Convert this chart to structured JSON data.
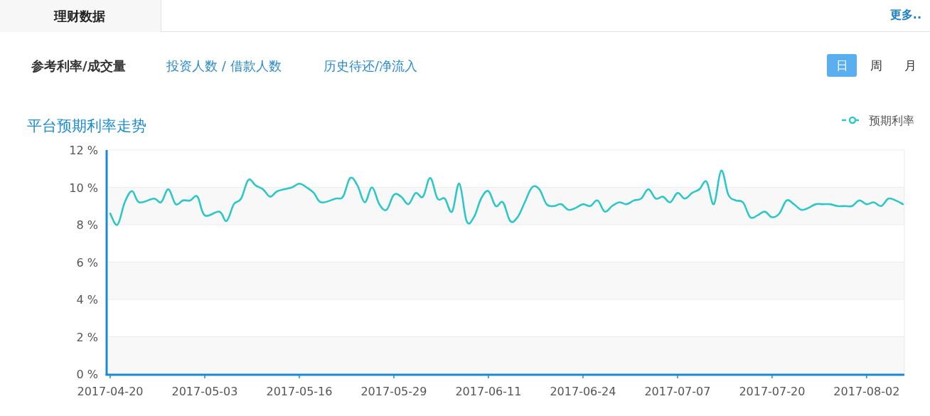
{
  "chart_data": {
    "type": "line",
    "title": "平台预期利率走势",
    "annotations": [
      "理财数据",
      "更多..",
      "参考利率/成交量",
      "投资人数 / 借款人数",
      "历史待还/净流入",
      "日",
      "周",
      "月"
    ],
    "series": [
      {
        "name": "预期利率",
        "color": "#2ec7c9",
        "x": [
          "2017-04-20",
          "2017-04-21",
          "2017-04-22",
          "2017-04-23",
          "2017-04-24",
          "2017-04-26",
          "2017-04-27",
          "2017-04-28",
          "2017-04-29",
          "2017-04-30",
          "2017-05-01",
          "2017-05-02",
          "2017-05-03",
          "2017-05-05",
          "2017-05-06",
          "2017-05-07",
          "2017-05-08",
          "2017-05-09",
          "2017-05-10",
          "2017-05-11",
          "2017-05-12",
          "2017-05-13",
          "2017-05-15",
          "2017-05-16",
          "2017-05-17",
          "2017-05-18",
          "2017-05-19",
          "2017-05-21",
          "2017-05-22",
          "2017-05-23",
          "2017-05-24",
          "2017-05-25",
          "2017-05-26",
          "2017-05-27",
          "2017-05-28",
          "2017-05-29",
          "2017-05-30",
          "2017-05-31",
          "2017-06-01",
          "2017-06-02",
          "2017-06-03",
          "2017-06-04",
          "2017-06-05",
          "2017-06-06",
          "2017-06-07",
          "2017-06-08",
          "2017-06-09",
          "2017-06-10",
          "2017-06-11",
          "2017-06-12",
          "2017-06-13",
          "2017-06-14",
          "2017-06-15",
          "2017-06-16",
          "2017-06-17",
          "2017-06-18",
          "2017-06-19",
          "2017-06-20",
          "2017-06-21",
          "2017-06-22",
          "2017-06-23",
          "2017-06-24",
          "2017-06-25",
          "2017-06-26",
          "2017-06-27",
          "2017-06-28",
          "2017-06-29",
          "2017-06-30",
          "2017-07-01",
          "2017-07-02",
          "2017-07-03",
          "2017-07-04",
          "2017-07-05",
          "2017-07-06",
          "2017-07-07",
          "2017-07-08",
          "2017-07-09",
          "2017-07-10",
          "2017-07-11",
          "2017-07-12",
          "2017-07-13",
          "2017-07-14",
          "2017-07-15",
          "2017-07-16",
          "2017-07-17",
          "2017-07-18",
          "2017-07-19",
          "2017-07-20",
          "2017-07-21",
          "2017-07-22",
          "2017-07-23",
          "2017-07-24",
          "2017-07-25",
          "2017-07-26",
          "2017-07-27",
          "2017-07-28",
          "2017-07-29",
          "2017-07-30",
          "2017-07-31",
          "2017-08-01",
          "2017-08-02",
          "2017-08-03",
          "2017-08-04",
          "2017-08-05",
          "2017-08-06",
          "2017-08-07"
        ],
        "values": [
          8.6,
          8.0,
          9.2,
          9.8,
          9.2,
          9.4,
          9.2,
          9.9,
          9.1,
          9.3,
          9.3,
          9.5,
          8.5,
          8.7,
          8.2,
          9.1,
          9.4,
          10.4,
          10.1,
          9.9,
          9.5,
          9.8,
          10.0,
          10.2,
          10.0,
          9.7,
          9.2,
          9.4,
          9.5,
          10.5,
          10.1,
          9.2,
          10.0,
          9.1,
          8.8,
          9.6,
          9.5,
          9.1,
          9.7,
          9.5,
          10.5,
          9.4,
          9.4,
          8.7,
          10.2,
          8.2,
          8.4,
          9.4,
          9.8,
          9.0,
          9.2,
          8.2,
          8.4,
          9.2,
          10.0,
          9.9,
          9.1,
          9.0,
          9.1,
          8.8,
          8.9,
          9.1,
          9.0,
          9.3,
          8.7,
          9.0,
          9.2,
          9.1,
          9.3,
          9.4,
          9.9,
          9.4,
          9.5,
          9.2,
          9.7,
          9.4,
          9.7,
          9.9,
          10.3,
          9.1,
          10.9,
          9.6,
          9.3,
          9.2,
          8.4,
          8.5,
          8.7,
          8.4,
          8.6,
          9.3,
          9.1,
          8.8,
          8.9,
          9.1,
          9.1,
          9.1,
          9.0,
          9.0,
          9.0,
          9.3,
          9.1,
          9.2,
          9.0,
          9.4,
          9.3,
          9.1
        ]
      }
    ],
    "xlim": [
      "2017-04-20",
      "2017-08-07"
    ],
    "xticks": [
      "2017-04-20",
      "2017-05-03",
      "2017-05-16",
      "2017-05-29",
      "2017-06-11",
      "2017-06-24",
      "2017-07-07",
      "2017-07-20",
      "2017-08-02"
    ],
    "ylim": [
      0,
      12
    ],
    "yticks": [
      {
        "value": 0,
        "label": "0 %"
      },
      {
        "value": 2,
        "label": "2 %"
      },
      {
        "value": 4,
        "label": "4 %"
      },
      {
        "value": 6,
        "label": "6 %"
      },
      {
        "value": 8,
        "label": "8 %"
      },
      {
        "value": 10,
        "label": "10 %"
      },
      {
        "value": 12,
        "label": "12 %"
      }
    ],
    "grid": "y",
    "legend": "top right"
  }
}
